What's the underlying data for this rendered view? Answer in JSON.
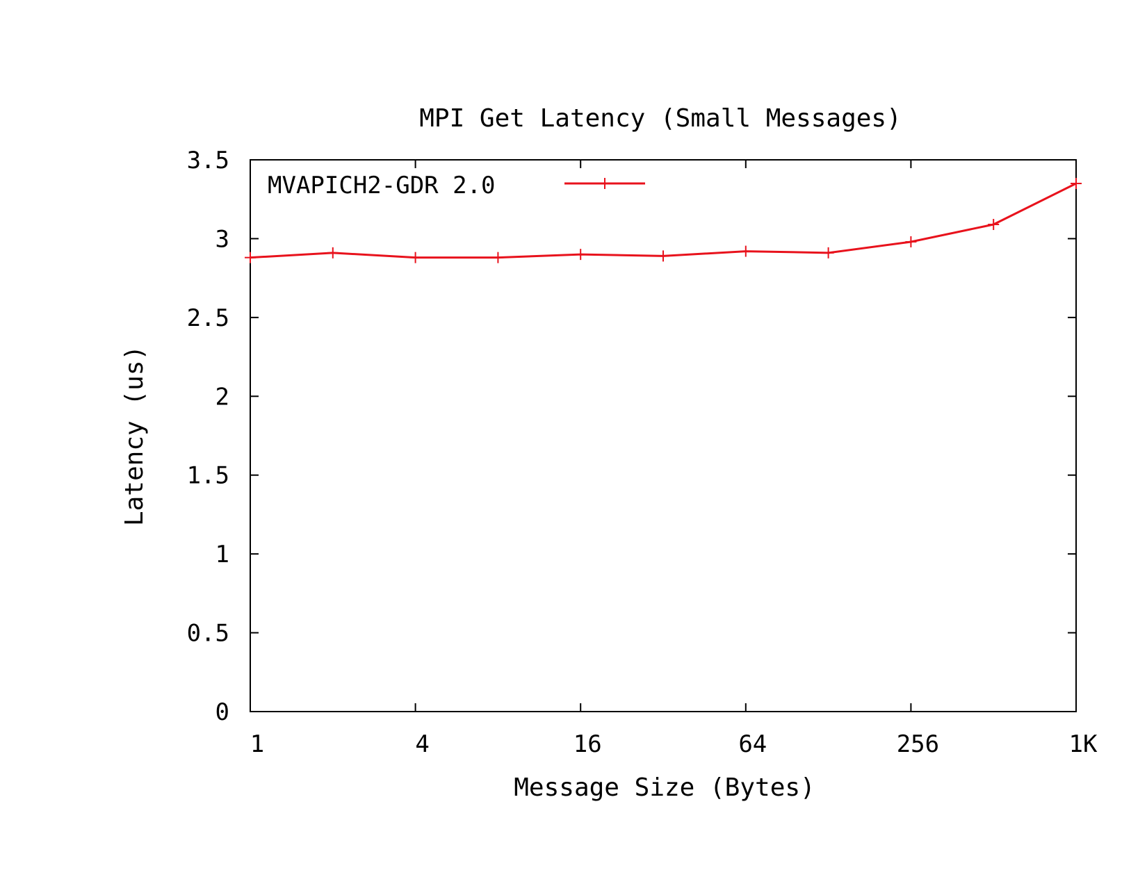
{
  "chart_data": {
    "type": "line",
    "title": "MPI Get Latency (Small Messages)",
    "xlabel": "Message Size (Bytes)",
    "ylabel": "Latency (us)",
    "x_scale": "log2",
    "xlim": [
      1,
      1024
    ],
    "ylim": [
      0,
      3.5
    ],
    "x_ticks": [
      {
        "value": 1,
        "label": "1"
      },
      {
        "value": 4,
        "label": "4"
      },
      {
        "value": 16,
        "label": "16"
      },
      {
        "value": 64,
        "label": "64"
      },
      {
        "value": 256,
        "label": "256"
      },
      {
        "value": 1024,
        "label": "1K"
      }
    ],
    "y_ticks": [
      {
        "value": 0,
        "label": "0"
      },
      {
        "value": 0.5,
        "label": "0.5"
      },
      {
        "value": 1,
        "label": "1"
      },
      {
        "value": 1.5,
        "label": "1.5"
      },
      {
        "value": 2,
        "label": "2"
      },
      {
        "value": 2.5,
        "label": "2.5"
      },
      {
        "value": 3,
        "label": "3"
      },
      {
        "value": 3.5,
        "label": "3.5"
      }
    ],
    "legend_position": "top-left",
    "grid": false,
    "series": [
      {
        "name": "MVAPICH2-GDR 2.0",
        "color": "#e8121c",
        "marker": "plus",
        "x": [
          1,
          2,
          4,
          8,
          16,
          32,
          64,
          128,
          256,
          512,
          1024
        ],
        "y": [
          2.88,
          2.91,
          2.88,
          2.88,
          2.9,
          2.89,
          2.92,
          2.91,
          2.98,
          3.09,
          3.35
        ]
      }
    ]
  }
}
